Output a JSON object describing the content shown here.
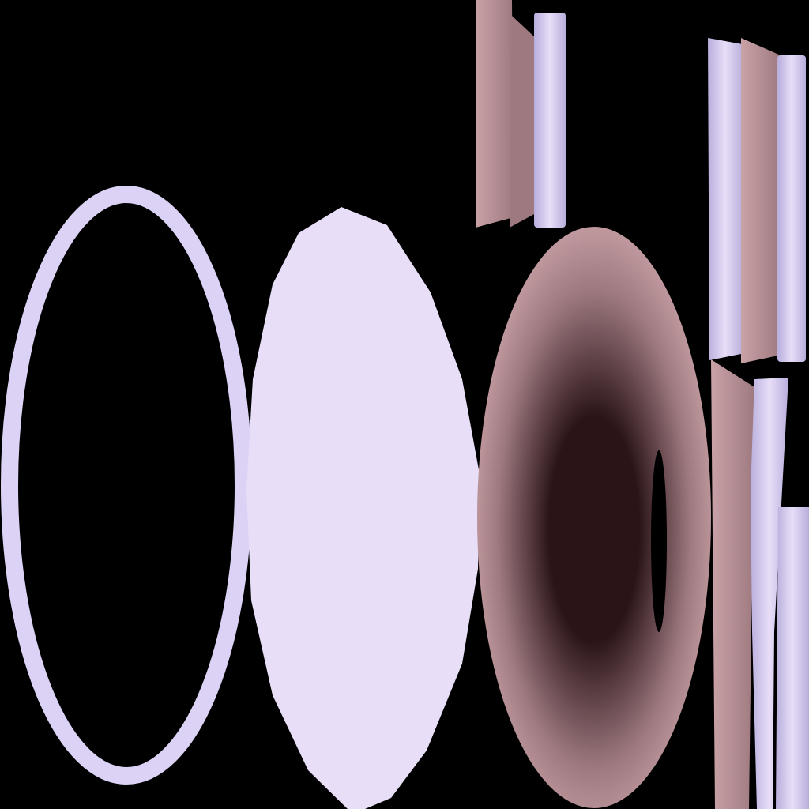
{
  "canvas": {
    "background": "#000000"
  },
  "colors": {
    "lavender": "#DCD2F5",
    "lavender_light": "#E8DEF8",
    "lavender_shade": "#B8AEDC",
    "mauve": "#C9A2A6",
    "mauve_dark": "#9E7A80",
    "mauve_shadow": "#2A1418"
  },
  "objects": [
    {
      "name": "ring-outline",
      "kind": "ellipse-ring"
    },
    {
      "name": "polygon-disc",
      "kind": "filled-polygon"
    },
    {
      "name": "shaded-torus",
      "kind": "radial-gradient-ellipse"
    },
    {
      "name": "bars-top-center",
      "kind": "vertical-bars"
    },
    {
      "name": "bars-top-right",
      "kind": "vertical-bars"
    },
    {
      "name": "bars-bottom-right",
      "kind": "vertical-bars"
    }
  ]
}
